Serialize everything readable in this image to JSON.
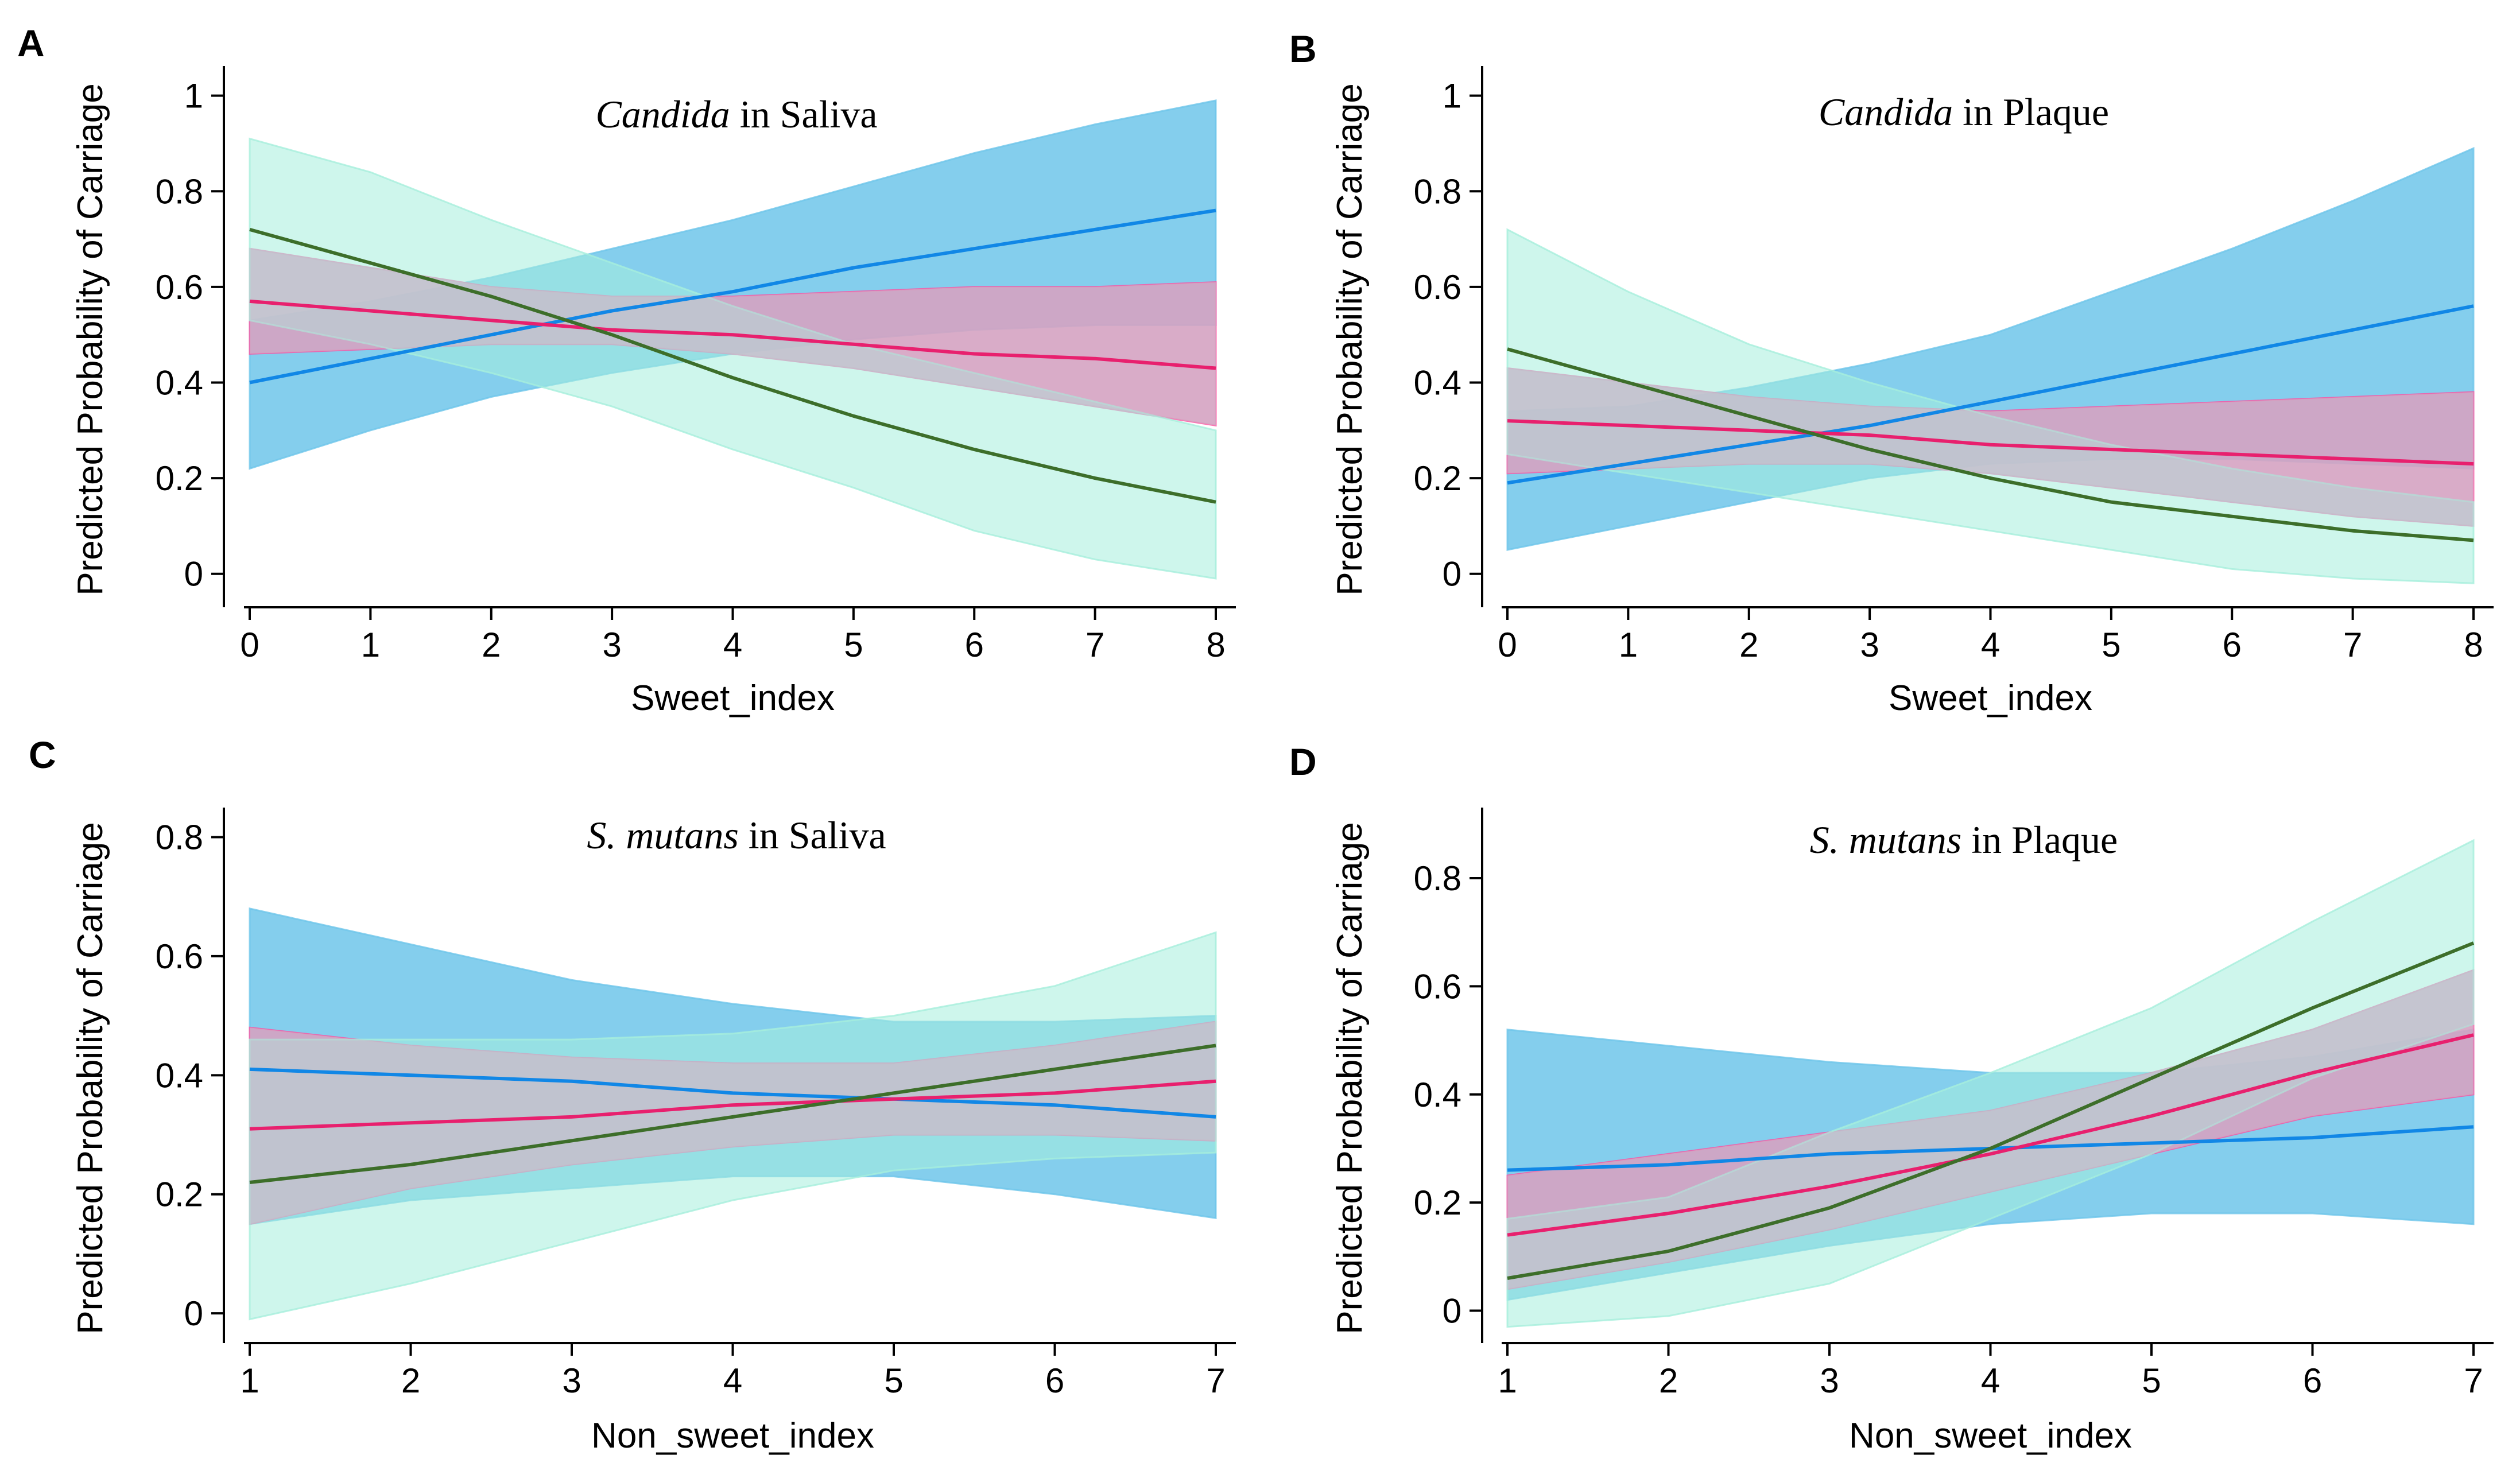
{
  "figure": {
    "colors": {
      "blue_band": "#6ec5ea",
      "blue_line": "#1187e6",
      "pink_band": "#ff4fa0",
      "pink_line": "#e8206e",
      "grey_band": "#bfcdd2",
      "teal_band": "#a6efdc",
      "teal_line": "#3d6e2a",
      "axis": "#000000"
    }
  },
  "chart_data": [
    {
      "panel": "A",
      "type": "line",
      "title_italic": "Candida",
      "title_rest": " in Saliva",
      "xlabel": "Sweet_index",
      "ylabel": "Predicted Probability of Carriage",
      "xlim": [
        0,
        8
      ],
      "ylim": [
        -0.07,
        1.05
      ],
      "xticks": [
        0,
        1,
        2,
        3,
        4,
        5,
        6,
        7,
        8
      ],
      "yticks": [
        0,
        0.2,
        0.4,
        0.6,
        0.8,
        1
      ],
      "ytick_labels": [
        "0",
        "0.2",
        "0.4",
        "0.6",
        "0.8",
        "1"
      ],
      "x": [
        0,
        1,
        2,
        3,
        4,
        5,
        6,
        7,
        8
      ],
      "series": [
        {
          "name": "blue",
          "color_key": "blue",
          "values": [
            0.4,
            0.45,
            0.5,
            0.55,
            0.59,
            0.64,
            0.68,
            0.72,
            0.76
          ],
          "lower": [
            0.22,
            0.3,
            0.37,
            0.42,
            0.46,
            0.49,
            0.51,
            0.52,
            0.52
          ],
          "upper": [
            0.53,
            0.57,
            0.62,
            0.68,
            0.74,
            0.81,
            0.88,
            0.94,
            0.99
          ]
        },
        {
          "name": "pink",
          "color_key": "pink",
          "values": [
            0.57,
            0.55,
            0.53,
            0.51,
            0.5,
            0.48,
            0.46,
            0.45,
            0.43
          ],
          "lower": [
            0.46,
            0.47,
            0.48,
            0.48,
            0.46,
            0.43,
            0.39,
            0.35,
            0.31
          ],
          "upper": [
            0.68,
            0.64,
            0.6,
            0.58,
            0.58,
            0.59,
            0.6,
            0.6,
            0.61
          ]
        },
        {
          "name": "green",
          "color_key": "teal",
          "values": [
            0.72,
            0.65,
            0.58,
            0.5,
            0.41,
            0.33,
            0.26,
            0.2,
            0.15
          ],
          "lower": [
            0.53,
            0.48,
            0.42,
            0.35,
            0.26,
            0.18,
            0.09,
            0.03,
            -0.01
          ],
          "upper": [
            0.91,
            0.84,
            0.74,
            0.65,
            0.56,
            0.48,
            0.42,
            0.36,
            0.3
          ]
        }
      ]
    },
    {
      "panel": "B",
      "type": "line",
      "title_italic": "Candida",
      "title_rest": " in Plaque",
      "xlabel": "Sweet_index",
      "ylabel": "Predicted Probability of Carriage",
      "xlim": [
        0,
        8
      ],
      "ylim": [
        -0.07,
        1.05
      ],
      "xticks": [
        0,
        1,
        2,
        3,
        4,
        5,
        6,
        7,
        8
      ],
      "yticks": [
        0,
        0.2,
        0.4,
        0.6,
        0.8,
        1
      ],
      "ytick_labels": [
        "0",
        "0.2",
        "0.4",
        "0.6",
        "0.8",
        "1"
      ],
      "x": [
        0,
        1,
        2,
        3,
        4,
        5,
        6,
        7,
        8
      ],
      "series": [
        {
          "name": "blue",
          "color_key": "blue",
          "values": [
            0.19,
            0.23,
            0.27,
            0.31,
            0.36,
            0.41,
            0.46,
            0.51,
            0.56
          ],
          "lower": [
            0.05,
            0.1,
            0.15,
            0.2,
            0.23,
            0.24,
            0.24,
            0.23,
            0.22
          ],
          "upper": [
            0.34,
            0.35,
            0.39,
            0.44,
            0.5,
            0.59,
            0.68,
            0.78,
            0.89
          ]
        },
        {
          "name": "pink",
          "color_key": "pink",
          "values": [
            0.32,
            0.31,
            0.3,
            0.29,
            0.27,
            0.26,
            0.25,
            0.24,
            0.23
          ],
          "lower": [
            0.21,
            0.22,
            0.23,
            0.23,
            0.21,
            0.18,
            0.15,
            0.12,
            0.1
          ],
          "upper": [
            0.43,
            0.4,
            0.37,
            0.35,
            0.34,
            0.35,
            0.36,
            0.37,
            0.38
          ]
        },
        {
          "name": "green",
          "color_key": "teal",
          "values": [
            0.47,
            0.4,
            0.33,
            0.26,
            0.2,
            0.15,
            0.12,
            0.09,
            0.07
          ],
          "lower": [
            0.25,
            0.21,
            0.17,
            0.13,
            0.09,
            0.05,
            0.01,
            -0.01,
            -0.02
          ],
          "upper": [
            0.72,
            0.59,
            0.48,
            0.4,
            0.33,
            0.27,
            0.22,
            0.18,
            0.15
          ]
        }
      ]
    },
    {
      "panel": "C",
      "type": "line",
      "title_italic": "S. mutans",
      "title_rest": " in Saliva",
      "xlabel": "Non_sweet_index",
      "ylabel": "Predicted Probability of Carriage",
      "xlim": [
        1,
        7
      ],
      "ylim": [
        -0.05,
        0.84
      ],
      "xticks": [
        1,
        2,
        3,
        4,
        5,
        6,
        7
      ],
      "yticks": [
        0,
        0.2,
        0.4,
        0.6,
        0.8
      ],
      "ytick_labels": [
        "0",
        "0.2",
        "0.4",
        "0.6",
        "0.8"
      ],
      "x": [
        1,
        2,
        3,
        4,
        5,
        6,
        7
      ],
      "series": [
        {
          "name": "blue",
          "color_key": "blue",
          "values": [
            0.41,
            0.4,
            0.39,
            0.37,
            0.36,
            0.35,
            0.33
          ],
          "lower": [
            0.15,
            0.19,
            0.21,
            0.23,
            0.23,
            0.2,
            0.16
          ],
          "upper": [
            0.68,
            0.62,
            0.56,
            0.52,
            0.49,
            0.49,
            0.5
          ]
        },
        {
          "name": "pink",
          "color_key": "pink",
          "values": [
            0.31,
            0.32,
            0.33,
            0.35,
            0.36,
            0.37,
            0.39
          ],
          "lower": [
            0.15,
            0.21,
            0.25,
            0.28,
            0.3,
            0.3,
            0.29
          ],
          "upper": [
            0.48,
            0.45,
            0.43,
            0.42,
            0.42,
            0.45,
            0.49
          ]
        },
        {
          "name": "green",
          "color_key": "teal",
          "values": [
            0.22,
            0.25,
            0.29,
            0.33,
            0.37,
            0.41,
            0.45
          ],
          "lower": [
            -0.01,
            0.05,
            0.12,
            0.19,
            0.24,
            0.26,
            0.27
          ],
          "upper": [
            0.46,
            0.46,
            0.46,
            0.47,
            0.5,
            0.55,
            0.64
          ]
        }
      ]
    },
    {
      "panel": "D",
      "type": "line",
      "title_italic": "S. mutans",
      "title_rest": " in Plaque",
      "xlabel": "Non_sweet_index",
      "ylabel": "Predicted Probability of Carriage",
      "xlim": [
        1,
        7
      ],
      "ylim": [
        -0.06,
        0.92
      ],
      "xticks": [
        1,
        2,
        3,
        4,
        5,
        6,
        7
      ],
      "yticks": [
        0,
        0.2,
        0.4,
        0.6,
        0.8
      ],
      "ytick_labels": [
        "0",
        "0.2",
        "0.4",
        "0.6",
        "0.8"
      ],
      "x": [
        1,
        2,
        3,
        4,
        5,
        6,
        7
      ],
      "series": [
        {
          "name": "blue",
          "color_key": "blue",
          "values": [
            0.26,
            0.27,
            0.29,
            0.3,
            0.31,
            0.32,
            0.34
          ],
          "lower": [
            0.02,
            0.07,
            0.12,
            0.16,
            0.18,
            0.18,
            0.16
          ],
          "upper": [
            0.52,
            0.49,
            0.46,
            0.44,
            0.44,
            0.47,
            0.52
          ]
        },
        {
          "name": "pink",
          "color_key": "pink",
          "values": [
            0.14,
            0.18,
            0.23,
            0.29,
            0.36,
            0.44,
            0.51
          ],
          "lower": [
            0.04,
            0.09,
            0.15,
            0.22,
            0.29,
            0.36,
            0.4
          ],
          "upper": [
            0.25,
            0.29,
            0.33,
            0.37,
            0.44,
            0.52,
            0.63
          ]
        },
        {
          "name": "green",
          "color_key": "teal",
          "values": [
            0.06,
            0.11,
            0.19,
            0.3,
            0.43,
            0.56,
            0.68
          ],
          "lower": [
            -0.03,
            -0.01,
            0.05,
            0.17,
            0.29,
            0.43,
            0.53
          ],
          "upper": [
            0.17,
            0.21,
            0.33,
            0.44,
            0.56,
            0.72,
            0.87
          ]
        }
      ]
    }
  ]
}
